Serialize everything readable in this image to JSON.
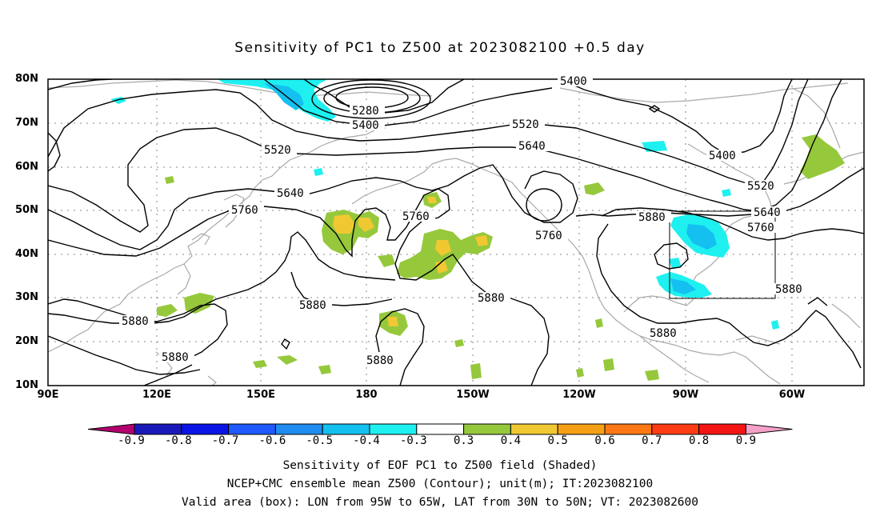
{
  "title": "Sensitivity of PC1 to Z500 at 2023082100 +0.5 day",
  "lat_labels": [
    "80N",
    "70N",
    "60N",
    "50N",
    "40N",
    "30N",
    "20N",
    "10N"
  ],
  "lon_labels": [
    "90E",
    "120E",
    "150E",
    "180",
    "150W",
    "120W",
    "90W",
    "60W"
  ],
  "contour_labels": [
    "5280",
    "5400",
    "5400",
    "5400",
    "5520",
    "5520",
    "5520",
    "5640",
    "5640",
    "5640",
    "5760",
    "5760",
    "5760",
    "5760",
    "5880",
    "5880",
    "5880",
    "5880",
    "5880",
    "5880",
    "5880",
    "5880"
  ],
  "colorbar": {
    "labels": [
      "-0.9",
      "-0.8",
      "-0.7",
      "-0.6",
      "-0.5",
      "-0.4",
      "-0.3",
      "0.3",
      "0.4",
      "0.5",
      "0.6",
      "0.7",
      "0.8",
      "0.9"
    ],
    "colors": [
      "#b4006e",
      "#1a1ab8",
      "#0a14e6",
      "#1e5aff",
      "#1e8cf0",
      "#14c0f0",
      "#1ef0f0",
      "#ffffff",
      "#96c83c",
      "#f0c832",
      "#f5a014",
      "#ff7814",
      "#ff3c14",
      "#f51414",
      "#f5a0c8"
    ]
  },
  "captions": {
    "line1": "Sensitivity of EOF PC1 to Z500 field (Shaded)",
    "line2": "NCEP+CMC ensemble mean Z500 (Contour); unit(m); IT:2023082100",
    "line3": "Valid area (box): LON from 95W to 65W, LAT from 30N to 50N; VT: 2023082600"
  }
}
